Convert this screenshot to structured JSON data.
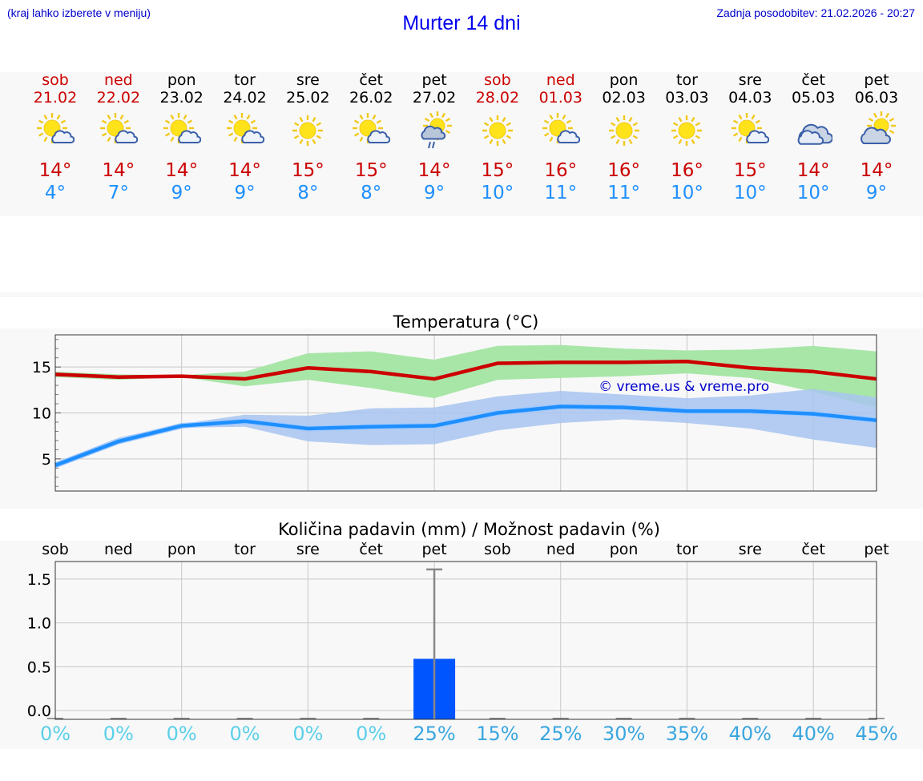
{
  "header": {
    "hint": "(kraj lahko izberete v meniju)",
    "title": "Murter 14 dni",
    "updated": "Zadnja posodobitev: 21.02.2026 - 20:27"
  },
  "colors": {
    "weekend": "#cc0000",
    "weekday": "#000000",
    "max": "#cc0000",
    "min": "#1e8fff",
    "maxBand": "#a8e6a8",
    "minBand": "#a8c4f0",
    "bar": "#0055ff",
    "watermark": "#0000cc"
  },
  "days": [
    {
      "name": "sob",
      "date": "21.02",
      "max": "14°",
      "min": "4°",
      "icon": "sun-cloud-icon",
      "weekend": true
    },
    {
      "name": "ned",
      "date": "22.02",
      "max": "14°",
      "min": "7°",
      "icon": "sun-cloud-icon",
      "weekend": true
    },
    {
      "name": "pon",
      "date": "23.02",
      "max": "14°",
      "min": "9°",
      "icon": "sun-cloud-icon",
      "weekend": false
    },
    {
      "name": "tor",
      "date": "24.02",
      "max": "14°",
      "min": "9°",
      "icon": "sun-cloud-icon",
      "weekend": false
    },
    {
      "name": "sre",
      "date": "25.02",
      "max": "15°",
      "min": "8°",
      "icon": "sun-icon",
      "weekend": false
    },
    {
      "name": "čet",
      "date": "26.02",
      "max": "15°",
      "min": "8°",
      "icon": "sun-cloud-icon",
      "weekend": false
    },
    {
      "name": "pet",
      "date": "27.02",
      "max": "14°",
      "min": "9°",
      "icon": "sun-rain-icon",
      "weekend": false
    },
    {
      "name": "sob",
      "date": "28.02",
      "max": "15°",
      "min": "10°",
      "icon": "sun-icon",
      "weekend": true
    },
    {
      "name": "ned",
      "date": "01.03",
      "max": "16°",
      "min": "11°",
      "icon": "sun-cloud-icon",
      "weekend": true
    },
    {
      "name": "pon",
      "date": "02.03",
      "max": "16°",
      "min": "11°",
      "icon": "sun-icon",
      "weekend": false
    },
    {
      "name": "tor",
      "date": "03.03",
      "max": "16°",
      "min": "10°",
      "icon": "sun-icon",
      "weekend": false
    },
    {
      "name": "sre",
      "date": "04.03",
      "max": "15°",
      "min": "10°",
      "icon": "sun-cloud-icon",
      "weekend": false
    },
    {
      "name": "čet",
      "date": "05.03",
      "max": "14°",
      "min": "10°",
      "icon": "cloud-icon",
      "weekend": false
    },
    {
      "name": "pet",
      "date": "06.03",
      "max": "14°",
      "min": "9°",
      "icon": "cloud-sun-icon",
      "weekend": false
    }
  ],
  "chart_data": [
    {
      "type": "line",
      "title": "Temperatura (°C)",
      "watermark": "© vreme.us & vreme.pro",
      "ylim": [
        1.5,
        18.5
      ],
      "yticks": [
        5,
        10,
        15
      ],
      "x": [
        0,
        1,
        2,
        3,
        4,
        5,
        6,
        7,
        8,
        9,
        10,
        11,
        12,
        13
      ],
      "series": [
        {
          "name": "max",
          "values": [
            14.2,
            13.9,
            14.0,
            13.7,
            14.9,
            14.5,
            13.7,
            15.4,
            15.5,
            15.5,
            15.6,
            14.9,
            14.5,
            13.7
          ],
          "band_low": [
            13.9,
            13.6,
            13.9,
            12.9,
            13.6,
            12.7,
            11.6,
            13.6,
            13.8,
            14.0,
            14.3,
            13.8,
            12.3,
            10.6
          ],
          "band_high": [
            14.5,
            14.2,
            14.1,
            14.5,
            16.5,
            16.7,
            15.8,
            17.3,
            17.4,
            17.0,
            16.8,
            16.9,
            17.3,
            16.7
          ]
        },
        {
          "name": "min",
          "values": [
            4.3,
            6.9,
            8.6,
            9.1,
            8.3,
            8.5,
            8.6,
            10.0,
            10.7,
            10.6,
            10.2,
            10.2,
            9.9,
            9.2
          ],
          "band_low": [
            4.0,
            6.6,
            8.4,
            8.5,
            6.9,
            6.5,
            6.6,
            8.1,
            8.9,
            9.3,
            8.9,
            8.3,
            7.1,
            6.2
          ],
          "band_high": [
            4.6,
            7.3,
            8.8,
            9.8,
            9.7,
            10.5,
            10.6,
            11.8,
            12.4,
            12.0,
            11.6,
            11.9,
            12.6,
            11.7
          ]
        }
      ]
    },
    {
      "type": "bar",
      "title": "Količina padavin (mm) / Možnost padavin (%)",
      "categories": [
        "sob",
        "ned",
        "pon",
        "tor",
        "sre",
        "čet",
        "pet",
        "sob",
        "ned",
        "pon",
        "tor",
        "sre",
        "čet",
        "pet"
      ],
      "values": [
        0,
        0,
        0,
        0,
        0,
        0,
        0.59,
        0,
        0,
        0,
        0,
        0,
        0,
        0
      ],
      "error_high": [
        0,
        0,
        0,
        0,
        0,
        0,
        1.61,
        0,
        0,
        0,
        0,
        0,
        0,
        0
      ],
      "ylim": [
        -0.1,
        1.7
      ],
      "yticks": [
        "0.0",
        "0.5",
        "1.0",
        "1.5"
      ],
      "ytick_values": [
        0,
        0.5,
        1.0,
        1.5
      ],
      "chance": [
        "0%",
        "0%",
        "0%",
        "0%",
        "0%",
        "0%",
        "25%",
        "15%",
        "25%",
        "30%",
        "35%",
        "40%",
        "40%",
        "45%"
      ],
      "chance_colors": [
        "#5bd0e8",
        "#5bd0e8",
        "#5bd0e8",
        "#5bd0e8",
        "#5bd0e8",
        "#5bd0e8",
        "#3aa6e0",
        "#3aa6e0",
        "#3aa6e0",
        "#3aa6e0",
        "#3aa6e0",
        "#3aa6e0",
        "#3aa6e0",
        "#3aa6e0"
      ]
    }
  ]
}
